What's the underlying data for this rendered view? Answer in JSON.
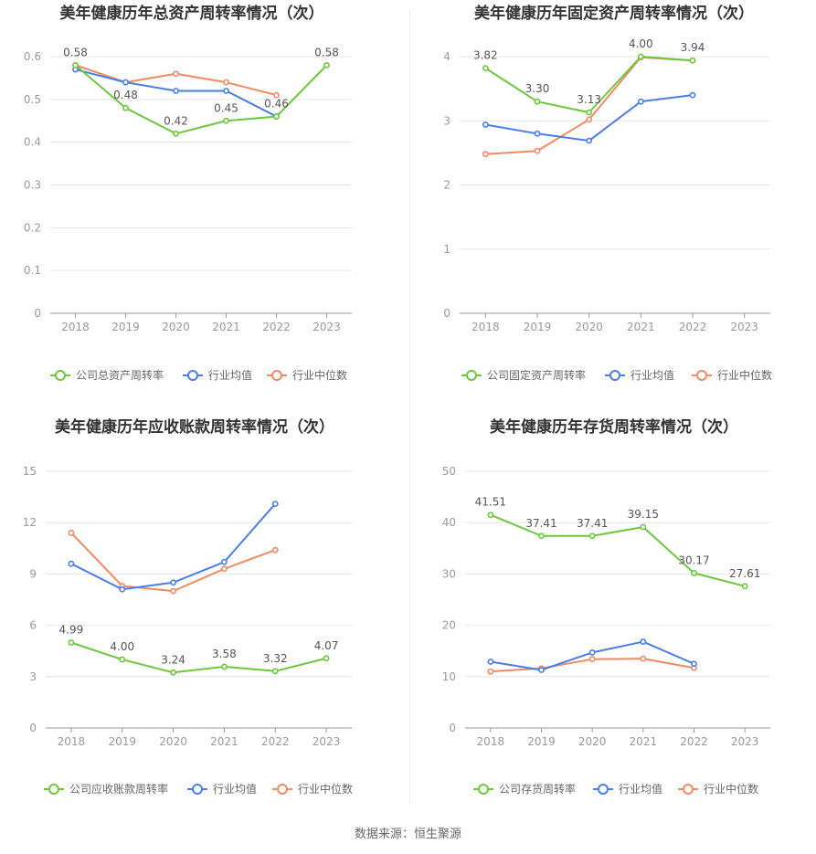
{
  "colors": {
    "company": "#6dc63e",
    "avg": "#4a7ee5",
    "median": "#f08a63",
    "grid": "#e6e6e6",
    "axis": "#999999",
    "title": "#333333",
    "label": "#555555"
  },
  "source_text": "数据来源：恒生聚源",
  "chart_data": [
    {
      "type": "line",
      "title": "美年健康历年总资产周转率情况（次）",
      "categories": [
        "2018",
        "2019",
        "2020",
        "2021",
        "2022",
        "2023"
      ],
      "ylim": [
        0,
        0.6
      ],
      "yticks": [
        "0",
        "0.1",
        "0.2",
        "0.3",
        "0.4",
        "0.5",
        "0.6"
      ],
      "series": [
        {
          "name": "公司总资产周转率",
          "role": "company",
          "values": [
            0.58,
            0.48,
            0.42,
            0.45,
            0.46,
            0.58
          ],
          "labels": [
            "0.58",
            "0.48",
            "0.42",
            "0.45",
            "0.46",
            "0.58"
          ]
        },
        {
          "name": "行业均值",
          "role": "avg",
          "values": [
            0.57,
            0.54,
            0.52,
            0.52,
            0.46,
            null
          ]
        },
        {
          "name": "行业中位数",
          "role": "median",
          "values": [
            0.58,
            0.54,
            0.56,
            0.54,
            0.51,
            null
          ]
        }
      ]
    },
    {
      "type": "line",
      "title": "美年健康历年固定资产周转率情况（次）",
      "categories": [
        "2018",
        "2019",
        "2020",
        "2021",
        "2022",
        "2023"
      ],
      "ylim": [
        0,
        4
      ],
      "yticks": [
        "0",
        "1",
        "2",
        "3",
        "4"
      ],
      "series": [
        {
          "name": "公司固定资产周转率",
          "role": "company",
          "values": [
            3.82,
            3.3,
            3.13,
            4.0,
            3.94,
            null
          ],
          "labels": [
            "3.82",
            "3.30",
            "3.13",
            "4.00",
            "3.94",
            ""
          ]
        },
        {
          "name": "行业均值",
          "role": "avg",
          "values": [
            2.94,
            2.8,
            2.69,
            3.3,
            3.4,
            null
          ]
        },
        {
          "name": "行业中位数",
          "role": "median",
          "values": [
            2.48,
            2.53,
            3.02,
            3.99,
            3.94,
            null
          ]
        }
      ]
    },
    {
      "type": "line",
      "title": "美年健康历年应收账款周转率情况（次）",
      "categories": [
        "2018",
        "2019",
        "2020",
        "2021",
        "2022",
        "2023"
      ],
      "ylim": [
        0,
        15
      ],
      "yticks": [
        "0",
        "3",
        "6",
        "9",
        "12",
        "15"
      ],
      "series": [
        {
          "name": "公司应收账款周转率",
          "role": "company",
          "values": [
            4.99,
            4.0,
            3.24,
            3.58,
            3.32,
            4.07
          ],
          "labels": [
            "4.99",
            "4.00",
            "3.24",
            "3.58",
            "3.32",
            "4.07"
          ]
        },
        {
          "name": "行业均值",
          "role": "avg",
          "values": [
            9.6,
            8.1,
            8.5,
            9.7,
            13.1,
            null
          ]
        },
        {
          "name": "行业中位数",
          "role": "median",
          "values": [
            11.4,
            8.3,
            8.0,
            9.3,
            10.4,
            null
          ]
        }
      ]
    },
    {
      "type": "line",
      "title": "美年健康历年存货周转率情况（次）",
      "categories": [
        "2018",
        "2019",
        "2020",
        "2021",
        "2022",
        "2023"
      ],
      "ylim": [
        0,
        50
      ],
      "yticks": [
        "0",
        "10",
        "20",
        "30",
        "40",
        "50"
      ],
      "series": [
        {
          "name": "公司存货周转率",
          "role": "company",
          "values": [
            41.51,
            37.41,
            37.41,
            39.15,
            30.17,
            27.61
          ],
          "labels": [
            "41.51",
            "37.41",
            "37.41",
            "39.15",
            "30.17",
            "27.61"
          ]
        },
        {
          "name": "行业均值",
          "role": "avg",
          "values": [
            12.9,
            11.3,
            14.7,
            16.8,
            12.5,
            null
          ]
        },
        {
          "name": "行业中位数",
          "role": "median",
          "values": [
            11.0,
            11.6,
            13.4,
            13.5,
            11.7,
            null
          ]
        }
      ]
    }
  ]
}
